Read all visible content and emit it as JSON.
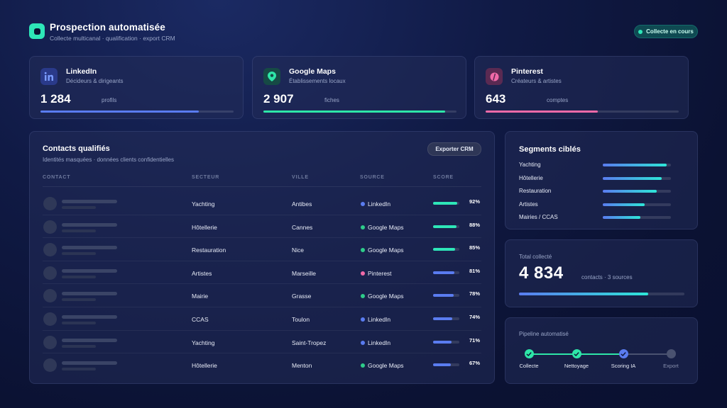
{
  "header": {
    "title": "Prospection automatisée",
    "subtitle": "Collecte multicanal · qualification · export CRM",
    "status": "Collecte en cours",
    "logo_icon": "app-logo-icon"
  },
  "sources": [
    {
      "name": "LinkedIn",
      "desc": "Décideurs & dirigeants",
      "count": "1 284",
      "unit": "profils",
      "icon": "linkedin-icon",
      "color": "#5a7cf0",
      "progress": 0.82
    },
    {
      "name": "Google Maps",
      "desc": "Établissements locaux",
      "count": "2 907",
      "unit": "fiches",
      "icon": "map-pin-icon",
      "color": "#2ee6a8",
      "progress": 0.94
    },
    {
      "name": "Pinterest",
      "desc": "Créateurs & artistes",
      "count": "643",
      "unit": "comptes",
      "icon": "pinterest-icon",
      "color": "#f06aa8",
      "progress": 0.58
    }
  ],
  "contacts": {
    "title": "Contacts qualifiés",
    "subtitle": "Identités masquées · données clients confidentielles",
    "export_label": "Exporter CRM",
    "columns": [
      "CONTACT",
      "SECTEUR",
      "VILLE",
      "SOURCE",
      "SCORE"
    ],
    "rows": [
      {
        "sector": "Yachting",
        "city": "Antibes",
        "source": "LinkedIn",
        "score": "92%",
        "score_value": 92
      },
      {
        "sector": "Hôtellerie",
        "city": "Cannes",
        "source": "Google Maps",
        "score": "88%",
        "score_value": 88
      },
      {
        "sector": "Restauration",
        "city": "Nice",
        "source": "Google Maps",
        "score": "85%",
        "score_value": 85
      },
      {
        "sector": "Artistes",
        "city": "Marseille",
        "source": "Pinterest",
        "score": "81%",
        "score_value": 81
      },
      {
        "sector": "Mairie",
        "city": "Grasse",
        "source": "Google Maps",
        "score": "78%",
        "score_value": 78
      },
      {
        "sector": "CCAS",
        "city": "Toulon",
        "source": "LinkedIn",
        "score": "74%",
        "score_value": 74
      },
      {
        "sector": "Yachting",
        "city": "Saint-Tropez",
        "source": "LinkedIn",
        "score": "71%",
        "score_value": 71
      },
      {
        "sector": "Hôtellerie",
        "city": "Menton",
        "source": "Google Maps",
        "score": "67%",
        "score_value": 67
      }
    ],
    "source_colors": {
      "LinkedIn": "#5a7cf0",
      "Google Maps": "#2ecc8a",
      "Pinterest": "#f06aa8"
    }
  },
  "segments": {
    "title": "Segments ciblés",
    "items": [
      {
        "label": "Yachting",
        "value": 0.94
      },
      {
        "label": "Hôtellerie",
        "value": 0.86
      },
      {
        "label": "Restauration",
        "value": 0.79
      },
      {
        "label": "Artistes",
        "value": 0.61
      },
      {
        "label": "Mairies / CCAS",
        "value": 0.55
      }
    ]
  },
  "total": {
    "label": "Total collecté",
    "value": "4 834",
    "unit": "contacts · 3 sources",
    "progress": 0.78
  },
  "pipeline": {
    "title": "Pipeline automatisé",
    "steps": [
      {
        "label": "Collecte",
        "state": "done"
      },
      {
        "label": "Nettoyage",
        "state": "done"
      },
      {
        "label": "Scoring IA",
        "state": "active"
      },
      {
        "label": "Export",
        "state": "pending"
      }
    ],
    "colors": {
      "done": "#2ee6a8",
      "active": "#5a7cf0",
      "pending": "#4a5270"
    }
  }
}
